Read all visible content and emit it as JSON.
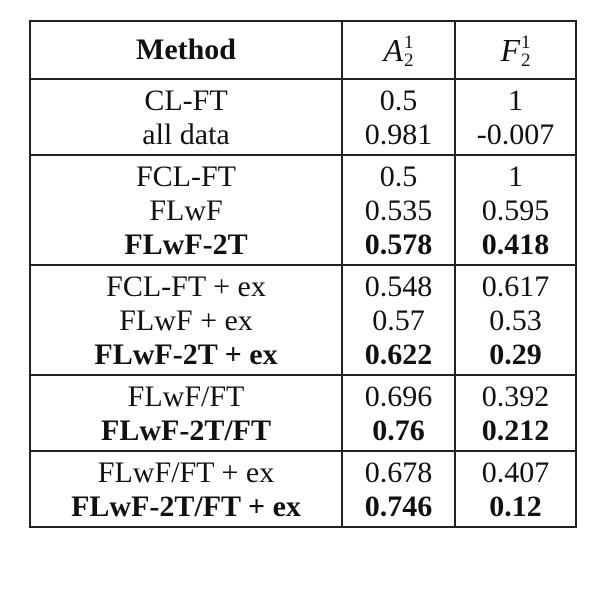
{
  "table": {
    "header": {
      "method": "Method",
      "a_symbol": "A",
      "f_symbol": "F",
      "superscript": "1",
      "subscript": "2"
    },
    "groups": [
      {
        "rows": [
          {
            "method": "CL-FT",
            "a": "0.5",
            "f": "1",
            "bold": false
          },
          {
            "method": "all data",
            "a": "0.981",
            "f": "-0.007",
            "bold": false
          }
        ]
      },
      {
        "rows": [
          {
            "method": "FCL-FT",
            "a": "0.5",
            "f": "1",
            "bold": false
          },
          {
            "method": "FLwF",
            "a": "0.535",
            "f": "0.595",
            "bold": false
          },
          {
            "method": "FLwF-2T",
            "a": "0.578",
            "f": "0.418",
            "bold": true
          }
        ]
      },
      {
        "rows": [
          {
            "method": "FCL-FT + ex",
            "a": "0.548",
            "f": "0.617",
            "bold": false
          },
          {
            "method": "FLwF + ex",
            "a": "0.57",
            "f": "0.53",
            "bold": false
          },
          {
            "method": "FLwF-2T + ex",
            "a": "0.622",
            "f": "0.29",
            "bold": true
          }
        ]
      },
      {
        "rows": [
          {
            "method": "FLwF/FT",
            "a": "0.696",
            "f": "0.392",
            "bold": false
          },
          {
            "method": "FLwF-2T/FT",
            "a": "0.76",
            "f": "0.212",
            "bold": true
          }
        ]
      },
      {
        "rows": [
          {
            "method": "FLwF/FT + ex",
            "a": "0.678",
            "f": "0.407",
            "bold": false
          },
          {
            "method": "FLwF-2T/FT + ex",
            "a": "0.746",
            "f": "0.12",
            "bold": true
          }
        ]
      }
    ]
  }
}
